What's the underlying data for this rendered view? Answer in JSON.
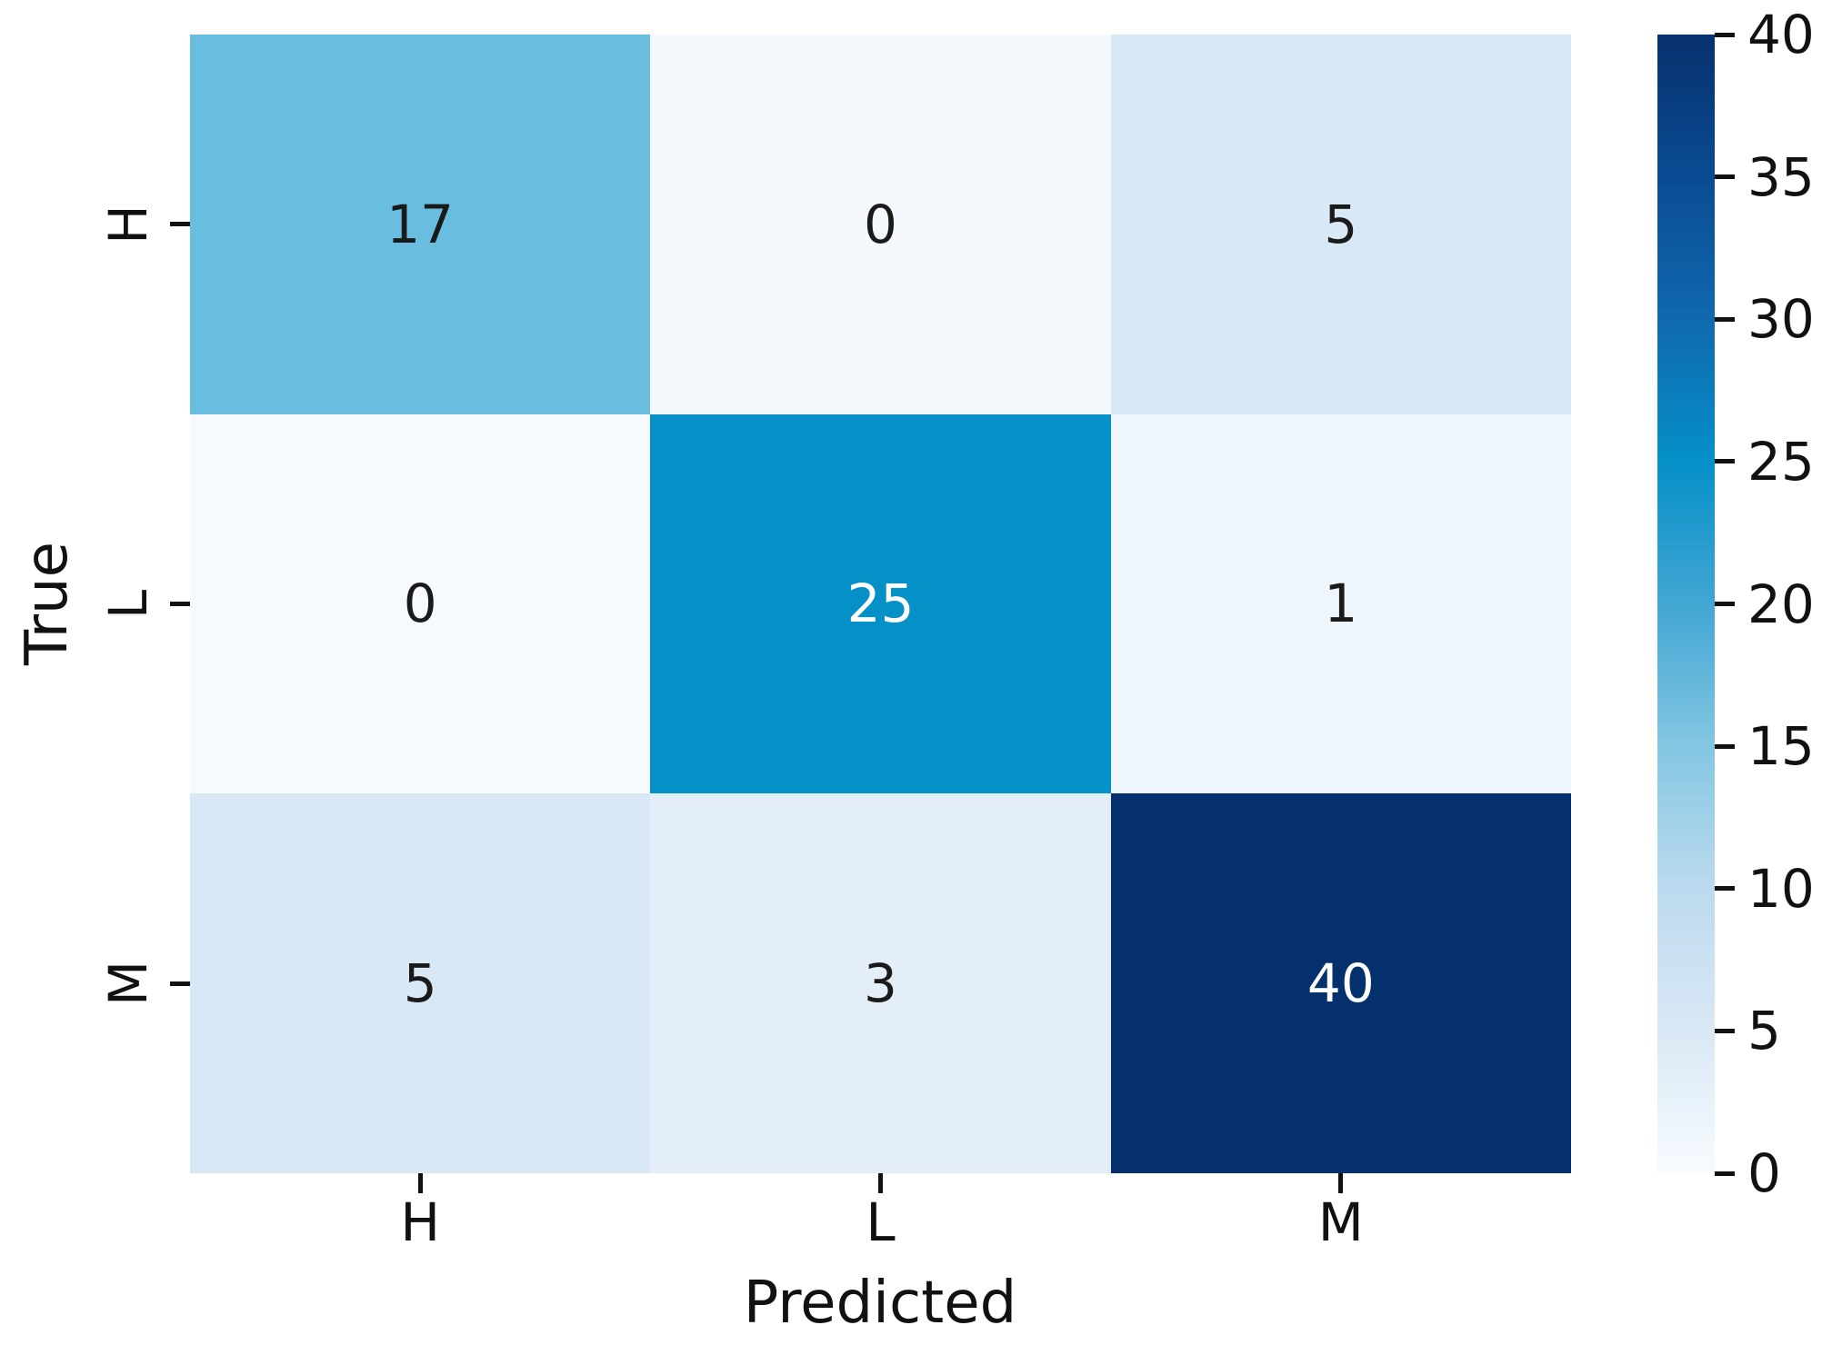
{
  "chart_data": {
    "type": "heatmap",
    "title": "",
    "xlabel": "Predicted",
    "ylabel": "True",
    "x_categories": [
      "H",
      "L",
      "M"
    ],
    "y_categories": [
      "H",
      "L",
      "M"
    ],
    "values": [
      [
        17,
        0,
        5
      ],
      [
        0,
        25,
        1
      ],
      [
        5,
        3,
        40
      ]
    ],
    "vmin": 0,
    "vmax": 40,
    "colormap": "Blues",
    "legend_position": "right-colorbar",
    "grid": false,
    "colorbar_ticks": [
      0,
      5,
      10,
      15,
      20,
      25,
      30,
      35,
      40
    ],
    "cell_colors": [
      [
        "#69bedf",
        "#f5f9fd",
        "#d9e8f5"
      ],
      [
        "#f6fafe",
        "#0590c8",
        "#eef5fb"
      ],
      [
        "#d9e8f5",
        "#e4eef8",
        "#04316e"
      ]
    ],
    "text_colors": [
      [
        "#1a1a1a",
        "#1a1a1a",
        "#1a1a1a"
      ],
      [
        "#1a1a1a",
        "#ffffff",
        "#1a1a1a"
      ],
      [
        "#1a1a1a",
        "#1a1a1a",
        "#ffffff"
      ]
    ],
    "colorbar_gradient": [
      {
        "value": 0,
        "color": "#f7fbff"
      },
      {
        "value": 5,
        "color": "#d9e8f5"
      },
      {
        "value": 10,
        "color": "#bcdaef"
      },
      {
        "value": 15,
        "color": "#83c6e2"
      },
      {
        "value": 20,
        "color": "#42a6d3"
      },
      {
        "value": 25,
        "color": "#0590c8"
      },
      {
        "value": 30,
        "color": "#1069ae"
      },
      {
        "value": 35,
        "color": "#0a4b93"
      },
      {
        "value": 40,
        "color": "#07316e"
      }
    ]
  }
}
